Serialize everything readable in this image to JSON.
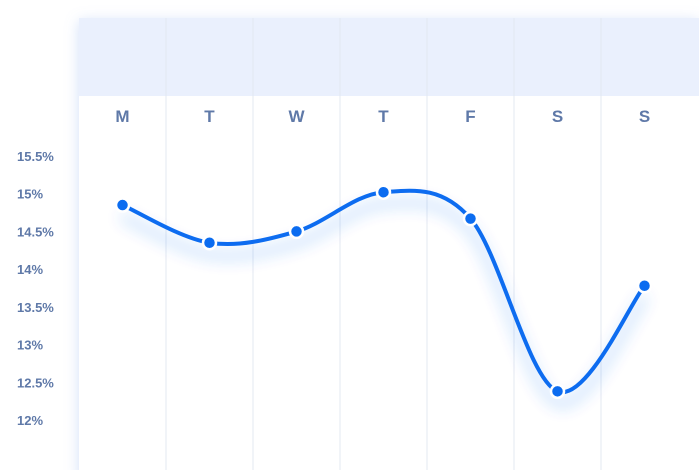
{
  "chart_data": {
    "type": "line",
    "categories": [
      "M",
      "T",
      "W",
      "T",
      "F",
      "S",
      "S"
    ],
    "series": [
      {
        "values": [
          14.85,
          14.35,
          14.5,
          15.02,
          14.67,
          12.38,
          13.78
        ]
      }
    ],
    "yticks": [
      "15.5%",
      "15%",
      "14.5%",
      "14%",
      "13.5%",
      "13%",
      "12.5%",
      "12%"
    ],
    "ytick_values": [
      15.5,
      15,
      14.5,
      14,
      13.5,
      13,
      12.5,
      12
    ],
    "ylim": [
      12,
      15.5
    ],
    "xlabel": "",
    "ylabel": "",
    "title": "",
    "grid": "vertical",
    "legend": "none",
    "colors": {
      "line": "#0b6cf0",
      "header_band": "#eaf0fd",
      "gridline": "#e3e8f1",
      "tick_text": "#5f79a8",
      "marker_stroke": "#ffffff"
    }
  }
}
